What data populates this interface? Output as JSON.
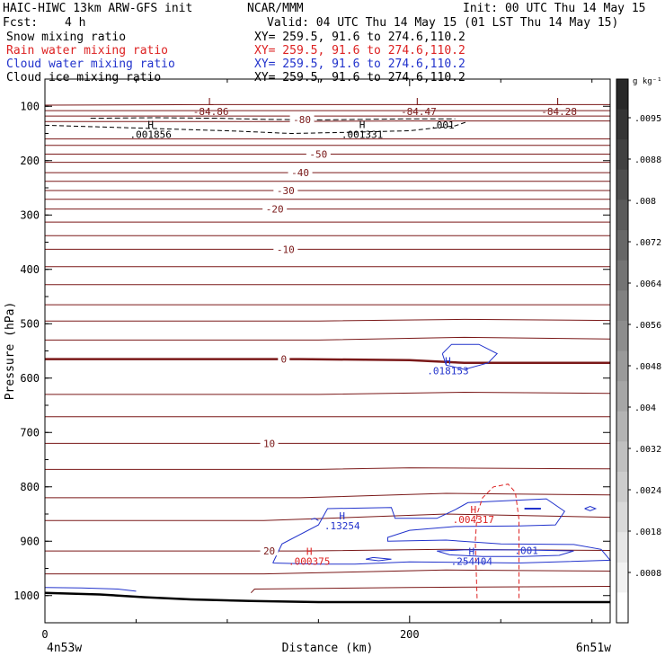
{
  "header": {
    "title_left": "HAIC-HIWC 13km ARW-GFS init",
    "org": "NCAR/MMM",
    "init": "Init: 00 UTC Thu 14 May 15",
    "fcst_label": "Fcst:",
    "fcst_value": "4 h",
    "valid": "Valid: 04 UTC Thu 14 May 15 (01 LST Thu 14 May 15)",
    "fields": [
      {
        "label": "Snow mixing ratio",
        "xy": "XY= 259.5, 91.6 to 274.6,110.2",
        "color": "#000000"
      },
      {
        "label": "Rain water mixing ratio",
        "xy": "XY= 259.5, 91.6 to 274.6,110.2",
        "color": "#dd2222"
      },
      {
        "label": "Cloud water mixing ratio",
        "xy": "XY= 259.5, 91.6 to 274.6,110.2",
        "color": "#2233cc"
      },
      {
        "label": "Cloud ice mixing ratio",
        "xy": "XY= 259.5, 91.6 to 274.6,110.2",
        "color": "#000000"
      }
    ]
  },
  "chart_data": {
    "type": "line",
    "xlabel": "Distance (km)",
    "ylabel": "Pressure (hPa)",
    "xlim": [
      0,
      310
    ],
    "x_ticks": [
      0,
      200
    ],
    "x_tick_labels": [
      "0",
      "200"
    ],
    "ylim": [
      1050,
      50
    ],
    "y_ticks": [
      100,
      200,
      300,
      400,
      500,
      600,
      700,
      800,
      900,
      1000
    ],
    "x_end_labels": {
      "left": "4n53w",
      "right": "6n51w"
    },
    "colorbar": {
      "unit": "g kg⁻¹",
      "labels": [
        ".0095",
        ".0088",
        ".008",
        ".0072",
        ".0064",
        ".0056",
        ".0048",
        ".004",
        ".0032",
        ".0024",
        ".0018",
        ".0008"
      ],
      "top_color": "#333333",
      "bottom_color": "#ffffff"
    },
    "temperature_isotherms": {
      "color": "#7a1818",
      "levels": [
        -84,
        -80,
        -60,
        -50,
        -40,
        -30,
        -20,
        -10,
        0,
        10,
        20
      ],
      "labels": [
        {
          "text": "-80",
          "x": 141,
          "p": 124
        },
        {
          "text": "-50",
          "x": 150,
          "p": 188
        },
        {
          "text": "-40",
          "x": 140,
          "p": 222
        },
        {
          "text": "-30",
          "x": 132,
          "p": 255
        },
        {
          "text": "-20",
          "x": 126,
          "p": 289
        },
        {
          "text": "-10",
          "x": 132,
          "p": 363
        },
        {
          "text": "0",
          "x": 131,
          "p": 565
        },
        {
          "text": "10",
          "x": 123,
          "p": 720
        },
        {
          "text": "20",
          "x": 123,
          "p": 918
        }
      ],
      "extrema": [
        {
          "type": "L",
          "value": "-84.86",
          "x": 91,
          "p": 98
        },
        {
          "type": "L",
          "value": "-84.47",
          "x": 205,
          "p": 98
        },
        {
          "type": "L",
          "value": "-84.28",
          "x": 282,
          "p": 98
        }
      ]
    },
    "snow_extrema": [
      {
        "type": "H",
        "value": ".001856",
        "x": 58,
        "p": 140
      },
      {
        "type": "H",
        "value": ".001331",
        "x": 174,
        "p": 140
      },
      {
        "type": "",
        "value": ".001",
        "x": 218,
        "p": 123
      }
    ],
    "cloud_water_extrema": [
      {
        "type": "H",
        "value": ".018153",
        "x": 221,
        "p": 575
      },
      {
        "type": "H",
        "value": ".13254",
        "x": 163,
        "p": 860
      },
      {
        "type": "H",
        "value": ".254404",
        "x": 234,
        "p": 925
      },
      {
        "type": "",
        "value": ".001",
        "x": 264,
        "p": 905
      }
    ],
    "rain_extrema": [
      {
        "type": "H",
        "value": ".004317",
        "x": 235,
        "p": 848
      },
      {
        "type": "H",
        "value": ".000375",
        "x": 145,
        "p": 925
      }
    ]
  }
}
